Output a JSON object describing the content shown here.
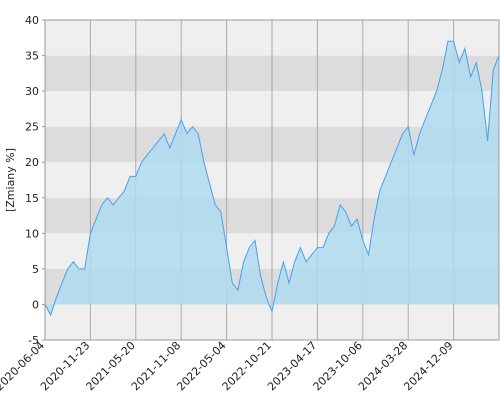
{
  "chart_data": {
    "type": "area",
    "y_label": "[Zmiany %]",
    "categories": [
      "2020-06-04",
      null,
      null,
      null,
      null,
      null,
      null,
      null,
      "2020-11-23",
      null,
      null,
      null,
      null,
      null,
      null,
      null,
      "2021-05-20",
      null,
      null,
      null,
      null,
      null,
      null,
      null,
      "2021-11-08",
      null,
      null,
      null,
      null,
      null,
      null,
      null,
      "2022-05-04",
      null,
      null,
      null,
      null,
      null,
      null,
      null,
      "2022-10-21",
      null,
      null,
      null,
      null,
      null,
      null,
      null,
      "2023-04-17",
      null,
      null,
      null,
      null,
      null,
      null,
      null,
      "2023-10-06",
      null,
      null,
      null,
      null,
      null,
      null,
      null,
      "2024-03-28",
      null,
      null,
      null,
      null,
      null,
      null,
      null,
      "2024-12-09",
      null,
      null,
      null,
      null,
      null,
      null,
      null,
      null
    ],
    "values": [
      0,
      -1.5,
      1,
      3,
      5,
      6,
      5,
      5,
      10,
      12,
      14,
      15,
      14,
      15,
      16,
      18,
      18,
      20,
      21,
      22,
      23,
      24,
      22,
      24,
      26,
      24,
      25,
      24,
      20,
      17,
      14,
      13,
      8,
      3,
      2,
      6,
      8,
      9,
      4,
      1,
      -1,
      3,
      6,
      3,
      6,
      8,
      6,
      7,
      8,
      8,
      10,
      11,
      14,
      13,
      11,
      12,
      9,
      7,
      12,
      16,
      18,
      20,
      22,
      24,
      25,
      21,
      24,
      26,
      28,
      30,
      33,
      37,
      37,
      34,
      36,
      32,
      34,
      30,
      23,
      33,
      35
    ],
    "color": "#4a9ff0",
    "fill_color": "#aedaee",
    "ylim": [
      -5,
      40
    ],
    "yticks": [
      -5,
      0,
      5,
      10,
      15,
      20,
      25,
      30,
      35,
      40
    ],
    "band_colors": [
      "#efefef",
      "#dcdcdc"
    ],
    "grid": true
  }
}
